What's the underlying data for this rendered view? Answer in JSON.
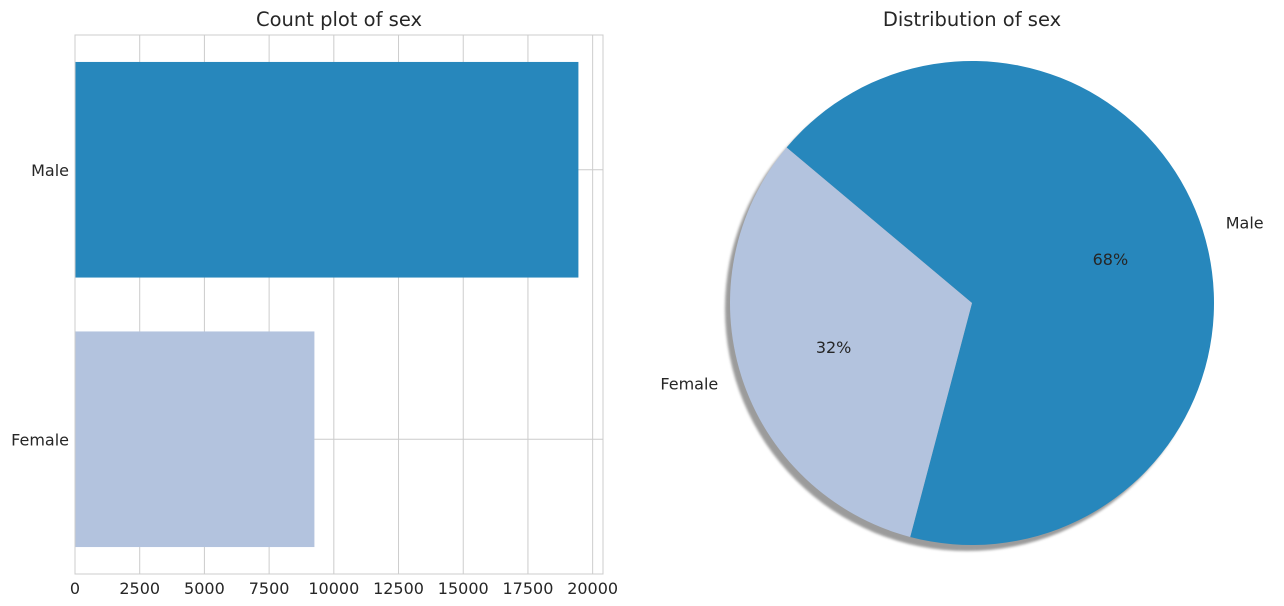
{
  "chart_data": [
    {
      "type": "bar",
      "orientation": "horizontal",
      "title": "Count plot of sex",
      "xlabel": "",
      "ylabel": "",
      "categories": [
        "Male",
        "Female"
      ],
      "values": [
        19450,
        9250
      ],
      "xlim": [
        0,
        20400
      ],
      "xticks": [
        0,
        2500,
        5000,
        7500,
        10000,
        12500,
        15000,
        17500,
        20000
      ],
      "colors": [
        "#2787bc",
        "#b3c3de"
      ],
      "grid": true
    },
    {
      "type": "pie",
      "title": "Distribution of sex",
      "labels": [
        "Male",
        "Female"
      ],
      "values": [
        68,
        32
      ],
      "pct_labels": [
        "68%",
        "32%"
      ],
      "colors": [
        "#2787bc",
        "#b3c3de"
      ],
      "shadow": true
    }
  ]
}
